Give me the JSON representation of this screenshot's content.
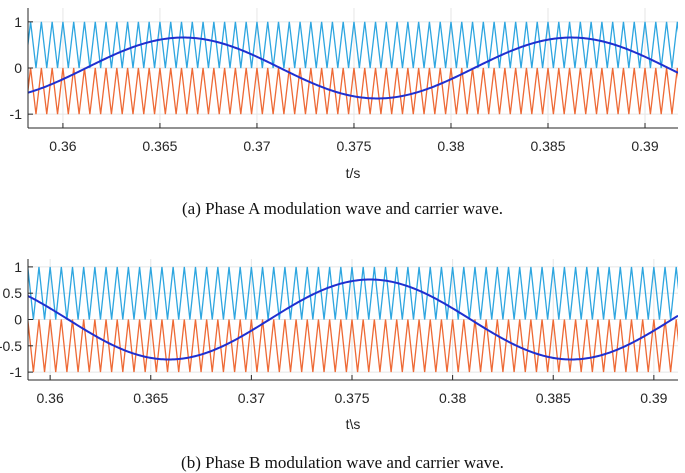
{
  "colors": {
    "carrier_upper": "#2ea6e0",
    "carrier_lower": "#ee6a36",
    "modulation": "#1f2fd0",
    "grid": "#e6e6e6",
    "axis": "#262626"
  },
  "captions": {
    "a": "(a) Phase A modulation wave and carrier wave.",
    "b": "(b) Phase B modulation wave and carrier wave."
  },
  "chart_data": [
    {
      "type": "line",
      "title": "",
      "xlabel": "t/s",
      "ylabel": "",
      "xlim": [
        0.3582,
        0.3917
      ],
      "ylim": [
        -1.3,
        1.3
      ],
      "xticks": [
        "0.36",
        "0.365",
        "0.37",
        "0.375",
        "0.38",
        "0.385",
        "0.39"
      ],
      "xtick_values": [
        0.36,
        0.365,
        0.37,
        0.375,
        0.38,
        0.385,
        0.39
      ],
      "yticks": [
        "1",
        "0",
        "-1"
      ],
      "ytick_values": [
        1,
        0,
        -1
      ],
      "grid": true,
      "series": [
        {
          "kind": "triangle-carrier",
          "min": 0,
          "max": 1,
          "frequency_hz": 1800,
          "phase": 0
        },
        {
          "kind": "triangle-carrier",
          "min": -1,
          "max": 0,
          "frequency_hz": 1800,
          "phase": 0
        },
        {
          "kind": "sine-modulation",
          "amplitude": 0.66,
          "frequency_hz": 50,
          "peak_at": 0.3662
        }
      ]
    },
    {
      "type": "line",
      "title": "",
      "xlabel": "t\\s",
      "ylabel": "",
      "xlim": [
        0.3589,
        0.3912
      ],
      "ylim": [
        -1.15,
        1.15
      ],
      "xticks": [
        "0.36",
        "0.365",
        "0.37",
        "0.375",
        "0.38",
        "0.385",
        "0.39"
      ],
      "xtick_values": [
        0.36,
        0.365,
        0.37,
        0.375,
        0.38,
        0.385,
        0.39
      ],
      "yticks": [
        "1",
        "0.5",
        "0",
        "-0.5",
        "-1"
      ],
      "ytick_values": [
        1,
        0.5,
        0,
        -0.5,
        -1
      ],
      "grid": true,
      "series": [
        {
          "kind": "triangle-carrier",
          "min": 0,
          "max": 1,
          "frequency_hz": 1800,
          "phase": 0
        },
        {
          "kind": "triangle-carrier",
          "min": -1,
          "max": 0,
          "frequency_hz": 1800,
          "phase": 0
        },
        {
          "kind": "sine-modulation",
          "amplitude": 0.76,
          "frequency_hz": 50,
          "peak_at": 0.3759
        }
      ]
    }
  ]
}
